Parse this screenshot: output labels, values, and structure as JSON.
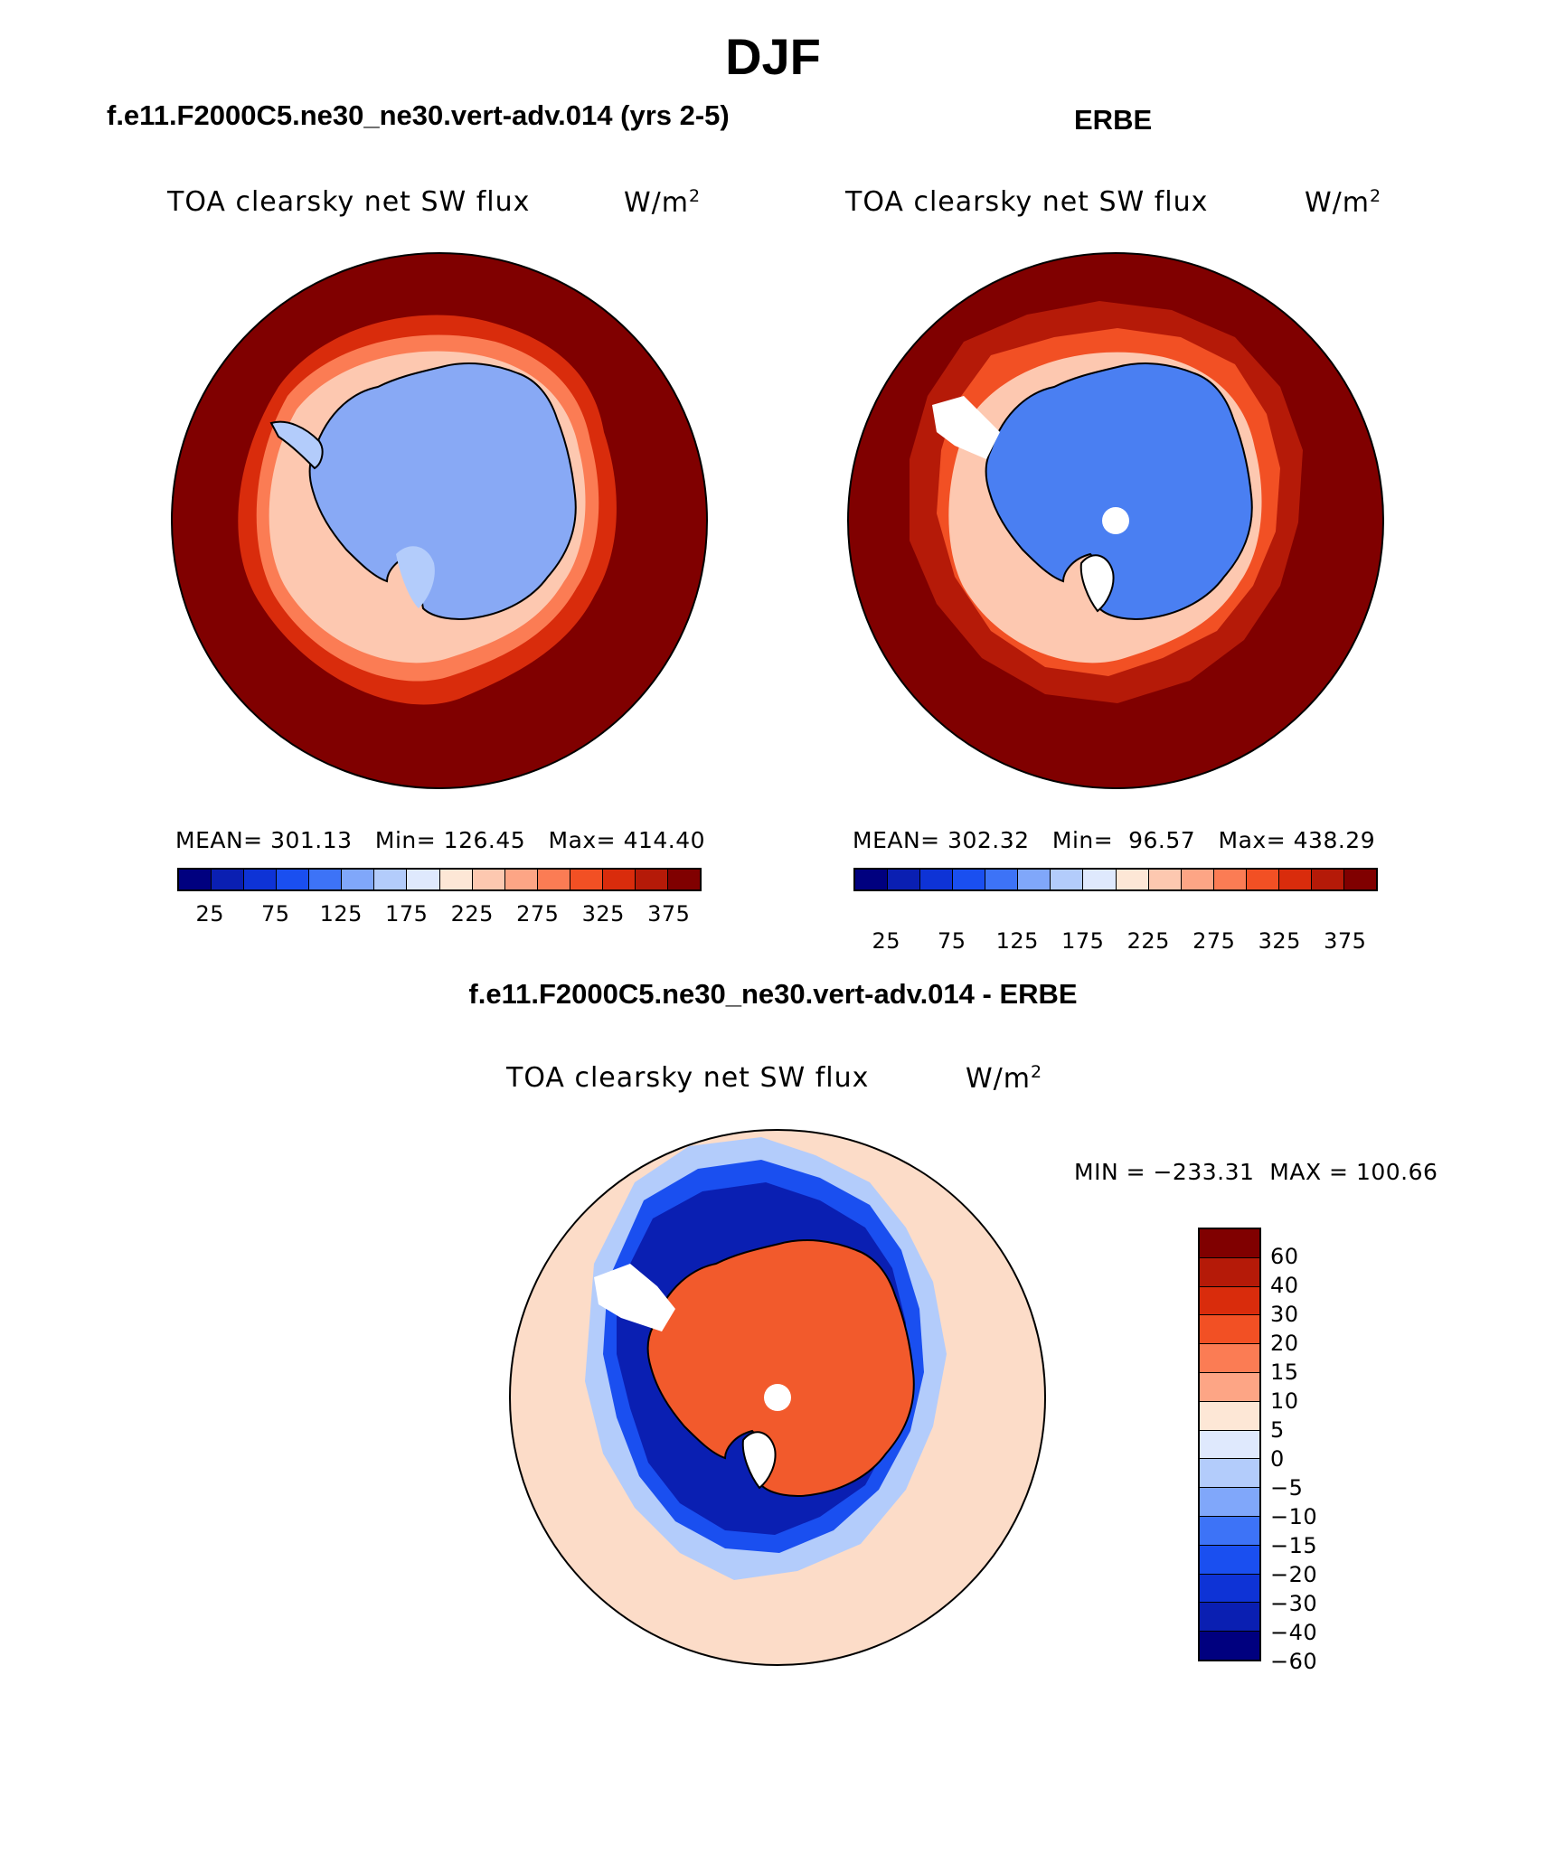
{
  "title": "DJF",
  "panels": [
    {
      "case": "f.e11.F2000C5.ne30_ne30.vert-adv.014 (yrs 2-5)",
      "variable": "TOA clearsky net SW flux",
      "units_base": "W/m",
      "units_exp": "2",
      "stats": {
        "mean_label": "MEAN=",
        "mean": "301.13",
        "min_label": "Min=",
        "min": "126.45",
        "max_label": "Max=",
        "max": "414.40"
      }
    },
    {
      "case": "ERBE",
      "variable": "TOA clearsky net SW flux",
      "units_base": "W/m",
      "units_exp": "2",
      "stats": {
        "mean_label": "MEAN=",
        "mean": "302.32",
        "min_label": "Min=",
        "min": "96.57",
        "max_label": "Max=",
        "max": "438.29"
      }
    },
    {
      "case": "f.e11.F2000C5.ne30_ne30.vert-adv.014 - ERBE",
      "variable": "TOA clearsky net SW flux",
      "units_base": "W/m",
      "units_exp": "2",
      "minmax": "MIN = −233.31  MAX = 100.66"
    }
  ],
  "colorbars": {
    "field": {
      "colors": [
        "#00007f",
        "#0a1fb2",
        "#0e33d6",
        "#1a4ff0",
        "#3d73f7",
        "#80a7fa",
        "#b3ccfb",
        "#dfe9fd",
        "#fde7d6",
        "#fdc8b0",
        "#fda585",
        "#fb7c54",
        "#f25024",
        "#d92c0c",
        "#b51a08",
        "#800000"
      ],
      "tick_labels": [
        "25",
        "75",
        "125",
        "175",
        "225",
        "275",
        "325",
        "375"
      ]
    },
    "diff": {
      "colors": [
        "#800000",
        "#b51a08",
        "#d92c0c",
        "#f25024",
        "#fb7c54",
        "#fda585",
        "#fde7d6",
        "#dfe9fd",
        "#b3ccfb",
        "#80a7fa",
        "#3d73f7",
        "#1a4ff0",
        "#0e33d6",
        "#0a1fb2",
        "#00007f"
      ],
      "tick_labels": [
        "60",
        "40",
        "30",
        "20",
        "15",
        "10",
        "5",
        "0",
        "−5",
        "−10",
        "−15",
        "−20",
        "−30",
        "−40",
        "−60"
      ]
    }
  },
  "colors": {
    "ocean_high": "#800000",
    "land_model": "#88a9f5",
    "land_obs": "#4a7ff2",
    "diff_positive": "#f25a2c",
    "diff_negative": "#0a1fb2",
    "diff_ocean": "#fcdcc8"
  }
}
